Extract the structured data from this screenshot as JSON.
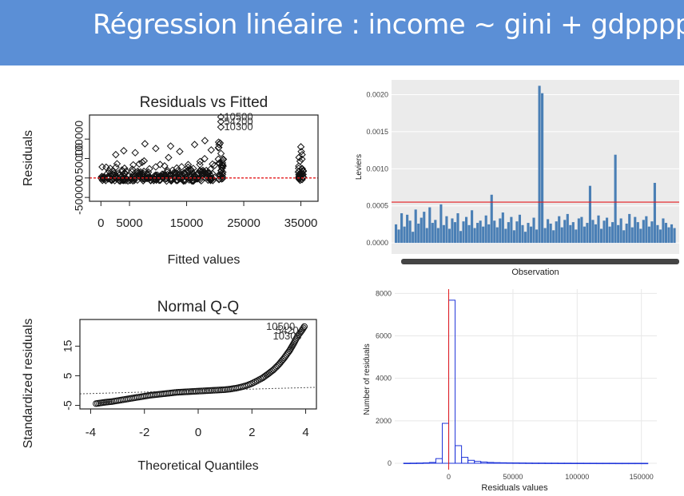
{
  "slide": {
    "title": "Régression linéaire : income ~ gini + gdpppp",
    "accent_color": "#5b8fd6"
  },
  "chart_data": [
    {
      "id": "resid-fitted",
      "type": "scatter",
      "title": "Residuals vs Fitted",
      "xlabel": "Fitted values",
      "ylabel": "Residuals",
      "xlim": [
        -2000,
        38000
      ],
      "ylim": [
        -60000,
        162000
      ],
      "xticks": [
        0,
        5000,
        15000,
        25000,
        35000
      ],
      "xtick_labels": [
        "0",
        "5000",
        "15000",
        "25000",
        "35000"
      ],
      "yticks": [
        -50000,
        0,
        50000,
        100000
      ],
      "ytick_labels": [
        "-50000",
        "0",
        "50000",
        "100000"
      ],
      "reference_line": {
        "y": 0,
        "color": "#e31a1c",
        "style": "dashed"
      },
      "outlier_labels": [
        {
          "text": "10500",
          "x": 21000,
          "y": 157000
        },
        {
          "text": "54200",
          "x": 21000,
          "y": 145000
        },
        {
          "text": "10300",
          "x": 21000,
          "y": 131000
        }
      ],
      "columns": [
        {
          "x": 500,
          "max": 30000
        },
        {
          "x": 1500,
          "max": 35000
        },
        {
          "x": 2500,
          "max": 40000
        },
        {
          "x": 3500,
          "max": 32000
        },
        {
          "x": 4500,
          "max": 45000
        },
        {
          "x": 5500,
          "max": 38000
        },
        {
          "x": 6500,
          "max": 42000
        },
        {
          "x": 7500,
          "max": 50000
        },
        {
          "x": 8500,
          "max": 35000
        },
        {
          "x": 9500,
          "max": 30000
        },
        {
          "x": 10500,
          "max": 40000
        },
        {
          "x": 11500,
          "max": 55000
        },
        {
          "x": 12500,
          "max": 48000
        },
        {
          "x": 13500,
          "max": 35000
        },
        {
          "x": 14500,
          "max": 40000
        },
        {
          "x": 15500,
          "max": 60000
        },
        {
          "x": 16500,
          "max": 45000
        },
        {
          "x": 17500,
          "max": 55000
        },
        {
          "x": 18500,
          "max": 50000
        },
        {
          "x": 19500,
          "max": 40000
        },
        {
          "x": 21000,
          "max": 120000
        },
        {
          "x": 35000,
          "max": 80000
        }
      ],
      "sparse_points": [
        {
          "x": 2600,
          "y": 60000
        },
        {
          "x": 4000,
          "y": 70000
        },
        {
          "x": 6000,
          "y": 65000
        },
        {
          "x": 7700,
          "y": 88000
        },
        {
          "x": 9600,
          "y": 76000
        },
        {
          "x": 12200,
          "y": 82000
        },
        {
          "x": 13800,
          "y": 68000
        },
        {
          "x": 16400,
          "y": 86000
        },
        {
          "x": 18200,
          "y": 96000
        },
        {
          "x": 19300,
          "y": 72000
        },
        {
          "x": 20600,
          "y": 92000
        },
        {
          "x": 21000,
          "y": 157000
        },
        {
          "x": 21000,
          "y": 145000
        },
        {
          "x": 21000,
          "y": 131000
        },
        {
          "x": 35000,
          "y": 80000
        }
      ]
    },
    {
      "id": "leverage",
      "type": "bar",
      "xlabel": "Observation",
      "ylabel": "Leviers",
      "ylim": [
        -0.00015,
        0.0022
      ],
      "yticks": [
        0.0,
        0.0005,
        0.001,
        0.0015,
        0.002
      ],
      "ytick_labels": [
        "0.0000",
        "0.0005",
        "0.0010",
        "0.0015",
        "0.0020"
      ],
      "threshold_line": {
        "y": 0.00055,
        "color": "#e31a1c"
      },
      "bar_color": "#4a7fb5",
      "panel_bg": "#ebebeb",
      "values": [
        0.00025,
        0.00018,
        0.0004,
        0.00022,
        0.00038,
        0.0003,
        0.00015,
        0.00045,
        0.00026,
        0.00034,
        0.00042,
        0.0002,
        0.00048,
        0.00027,
        0.00031,
        0.0002,
        0.00052,
        0.00024,
        0.00036,
        0.00019,
        0.00033,
        0.00028,
        0.0004,
        0.00016,
        0.00029,
        0.00035,
        0.00024,
        0.00044,
        0.0002,
        0.00027,
        0.0003,
        0.00022,
        0.00037,
        0.00025,
        0.00065,
        0.0003,
        0.00021,
        0.00033,
        0.00041,
        0.00019,
        0.00028,
        0.00035,
        0.00017,
        0.00029,
        0.00038,
        0.00024,
        0.00015,
        0.00027,
        0.00022,
        0.00034,
        0.00018,
        0.00212,
        0.00202,
        0.0002,
        0.00032,
        0.00026,
        0.00017,
        0.00029,
        0.00036,
        0.00021,
        0.00031,
        0.00039,
        0.00024,
        0.00028,
        0.00018,
        0.00033,
        0.00035,
        0.00022,
        0.00027,
        0.00077,
        0.00031,
        0.00025,
        0.00037,
        0.00019,
        0.0003,
        0.00034,
        0.00022,
        0.00028,
        0.00119,
        0.00024,
        0.00033,
        0.00017,
        0.00026,
        0.00039,
        0.00021,
        0.00035,
        0.00028,
        0.00019,
        0.00031,
        0.00036,
        0.00022,
        0.00029,
        0.00081,
        0.00024,
        0.00018,
        0.00033,
        0.00027,
        0.00021,
        0.00025,
        0.0002
      ]
    },
    {
      "id": "qq",
      "type": "scatter",
      "title": "Normal Q-Q",
      "xlabel": "Theoretical Quantiles",
      "ylabel": "Standardized residuals",
      "xlim": [
        -4.4,
        4.4
      ],
      "ylim": [
        -6.2,
        24
      ],
      "xticks": [
        -4,
        -2,
        0,
        2,
        4
      ],
      "xtick_labels": [
        "-4",
        "-2",
        "0",
        "2",
        "4"
      ],
      "yticks": [
        -5,
        5,
        15
      ],
      "ytick_labels": [
        "-5",
        "5",
        "15"
      ],
      "reference_line": {
        "intercept": 0,
        "slope": 1,
        "style": "dotted",
        "color": "#555555"
      },
      "outlier_labels": [
        {
          "text": "10500",
          "x": 3.6,
          "y": 21.6
        },
        {
          "text": "54200",
          "x": 3.95,
          "y": 20.2
        },
        {
          "text": "10300",
          "x": 3.85,
          "y": 18.4
        }
      ],
      "points": [
        [
          -3.8,
          -4.4
        ],
        [
          -3.5,
          -4.0
        ],
        [
          -3.2,
          -3.7
        ],
        [
          -3.0,
          -3.4
        ],
        [
          -2.8,
          -3.1
        ],
        [
          -2.6,
          -2.8
        ],
        [
          -2.4,
          -2.5
        ],
        [
          -2.2,
          -2.2
        ],
        [
          -2.0,
          -1.9
        ],
        [
          -1.8,
          -1.6
        ],
        [
          -1.6,
          -1.4
        ],
        [
          -1.4,
          -1.2
        ],
        [
          -1.2,
          -1.0
        ],
        [
          -1.0,
          -0.8
        ],
        [
          -0.8,
          -0.6
        ],
        [
          -0.6,
          -0.5
        ],
        [
          -0.4,
          -0.4
        ],
        [
          -0.2,
          -0.3
        ],
        [
          0.0,
          -0.2
        ],
        [
          0.2,
          -0.1
        ],
        [
          0.4,
          0.0
        ],
        [
          0.6,
          0.1
        ],
        [
          0.8,
          0.2
        ],
        [
          1.0,
          0.3
        ],
        [
          1.2,
          0.5
        ],
        [
          1.4,
          0.8
        ],
        [
          1.6,
          1.2
        ],
        [
          1.8,
          1.7
        ],
        [
          2.0,
          2.4
        ],
        [
          2.2,
          3.3
        ],
        [
          2.4,
          4.3
        ],
        [
          2.6,
          5.6
        ],
        [
          2.8,
          7.0
        ],
        [
          3.0,
          8.8
        ],
        [
          3.2,
          11.0
        ],
        [
          3.4,
          13.5
        ],
        [
          3.55,
          15.8
        ],
        [
          3.7,
          18.4
        ],
        [
          3.85,
          20.2
        ],
        [
          3.95,
          21.6
        ]
      ]
    },
    {
      "id": "residual-histogram",
      "type": "histogram",
      "xlabel": "Residuals values",
      "ylabel": "Number of residuals",
      "xlim": [
        -42000,
        162000
      ],
      "ylim": [
        -300,
        8200
      ],
      "xticks": [
        0,
        50000,
        100000,
        150000
      ],
      "xtick_labels": [
        "0",
        "50000",
        "100000",
        "150000"
      ],
      "yticks": [
        0,
        2000,
        4000,
        6000,
        8000
      ],
      "ytick_labels": [
        "0",
        "2000",
        "4000",
        "6000",
        "8000"
      ],
      "bin_width": 5000,
      "bins": [
        [
          -35000,
          5
        ],
        [
          -30000,
          8
        ],
        [
          -25000,
          12
        ],
        [
          -20000,
          20
        ],
        [
          -15000,
          40
        ],
        [
          -10000,
          220
        ],
        [
          -5000,
          1880
        ],
        [
          0,
          7680
        ],
        [
          5000,
          830
        ],
        [
          10000,
          280
        ],
        [
          15000,
          140
        ],
        [
          20000,
          90
        ],
        [
          25000,
          60
        ],
        [
          30000,
          40
        ],
        [
          35000,
          30
        ],
        [
          40000,
          25
        ],
        [
          45000,
          20
        ],
        [
          50000,
          18
        ],
        [
          55000,
          15
        ],
        [
          60000,
          12
        ],
        [
          65000,
          10
        ],
        [
          70000,
          10
        ],
        [
          75000,
          8
        ],
        [
          80000,
          8
        ],
        [
          85000,
          6
        ],
        [
          90000,
          6
        ],
        [
          95000,
          5
        ],
        [
          100000,
          5
        ],
        [
          105000,
          4
        ],
        [
          110000,
          4
        ],
        [
          115000,
          3
        ],
        [
          120000,
          3
        ],
        [
          125000,
          3
        ],
        [
          130000,
          2
        ],
        [
          135000,
          2
        ],
        [
          140000,
          2
        ],
        [
          145000,
          2
        ],
        [
          150000,
          1
        ]
      ],
      "reference_line": {
        "x": 0,
        "color": "#e31a1c"
      },
      "bar_color": "#1f35d9",
      "panel_bg": "#ffffff"
    }
  ]
}
